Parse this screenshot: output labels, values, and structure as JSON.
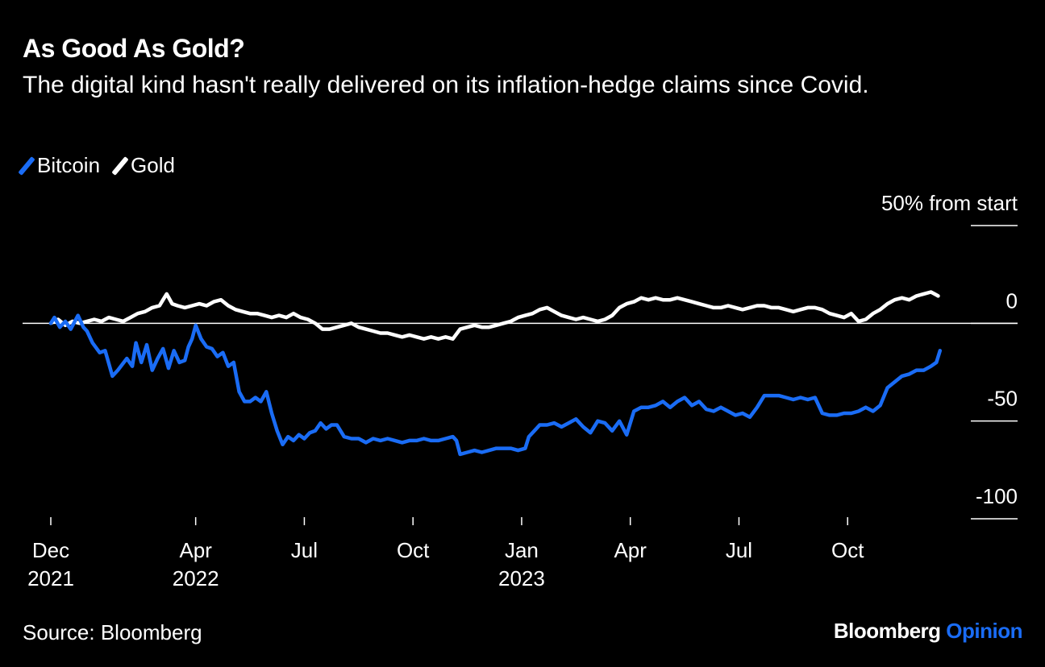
{
  "header": {
    "title": "As Good As Gold?",
    "subtitle": "The digital kind hasn't really delivered on its inflation-hedge claims since Covid."
  },
  "footer": {
    "source": "Source: Bloomberg",
    "brand_main": "Bloomberg",
    "brand_accent": "Opinion"
  },
  "colors": {
    "background": "#000000",
    "bitcoin": "#1a6cf5",
    "gold": "#ffffff",
    "accent": "#1a6cf5"
  },
  "chart_data": {
    "type": "line",
    "title": "As Good As Gold?",
    "ylabel": "% from start",
    "ylim": [
      -100,
      50
    ],
    "xlim": [
      0,
      24.6
    ],
    "y_ticks": [
      {
        "value": 50,
        "label": "50% from start"
      },
      {
        "value": 0,
        "label": "0"
      },
      {
        "value": -50,
        "label": "-50"
      },
      {
        "value": -100,
        "label": "-100"
      }
    ],
    "x_ticks": [
      {
        "value": 0,
        "label": "Dec",
        "sub": "2021"
      },
      {
        "value": 4,
        "label": "Apr",
        "sub": "2022"
      },
      {
        "value": 7,
        "label": "Jul",
        "sub": ""
      },
      {
        "value": 10,
        "label": "Oct",
        "sub": ""
      },
      {
        "value": 13,
        "label": "Jan",
        "sub": "2023"
      },
      {
        "value": 16,
        "label": "Apr",
        "sub": ""
      },
      {
        "value": 19,
        "label": "Jul",
        "sub": ""
      },
      {
        "value": 22,
        "label": "Oct",
        "sub": ""
      }
    ],
    "series": [
      {
        "name": "Bitcoin",
        "color": "#1a6cf5",
        "x": [
          0,
          0.1,
          0.25,
          0.4,
          0.55,
          0.75,
          0.9,
          1.0,
          1.15,
          1.35,
          1.5,
          1.7,
          1.85,
          2.1,
          2.25,
          2.35,
          2.5,
          2.65,
          2.8,
          2.95,
          3.1,
          3.25,
          3.4,
          3.55,
          3.7,
          3.8,
          3.9,
          4.0,
          4.15,
          4.3,
          4.45,
          4.6,
          4.75,
          4.9,
          5.05,
          5.2,
          5.35,
          5.5,
          5.65,
          5.8,
          5.95,
          6.1,
          6.25,
          6.4,
          6.55,
          6.7,
          6.85,
          7.0,
          7.15,
          7.3,
          7.45,
          7.6,
          7.75,
          7.9,
          8.1,
          8.3,
          8.5,
          8.7,
          8.9,
          9.1,
          9.3,
          9.5,
          9.7,
          9.9,
          10.1,
          10.3,
          10.5,
          10.7,
          10.9,
          11.1,
          11.2,
          11.3,
          11.5,
          11.7,
          11.9,
          12.1,
          12.3,
          12.5,
          12.7,
          12.9,
          13.1,
          13.2,
          13.35,
          13.5,
          13.7,
          13.9,
          14.1,
          14.3,
          14.5,
          14.7,
          14.9,
          15.1,
          15.3,
          15.5,
          15.7,
          15.9,
          16.1,
          16.3,
          16.5,
          16.7,
          16.9,
          17.1,
          17.3,
          17.5,
          17.7,
          17.9,
          18.1,
          18.3,
          18.5,
          18.7,
          18.9,
          19.1,
          19.3,
          19.5,
          19.7,
          19.9,
          20.1,
          20.3,
          20.5,
          20.7,
          20.9,
          21.1,
          21.3,
          21.5,
          21.7,
          21.9,
          22.1,
          22.3,
          22.5,
          22.7,
          22.9,
          23.1,
          23.3,
          23.5,
          23.7,
          23.9,
          24.1,
          24.3,
          24.45,
          24.55
        ],
        "values": [
          0,
          3,
          -2,
          1,
          -3,
          4,
          -2,
          -4,
          -10,
          -15,
          -14,
          -27,
          -24,
          -18,
          -22,
          -10,
          -20,
          -11,
          -24,
          -18,
          -13,
          -23,
          -14,
          -20,
          -19,
          -12,
          -8,
          -1,
          -8,
          -12,
          -13,
          -17,
          -15,
          -22,
          -20,
          -35,
          -40,
          -40,
          -38,
          -40,
          -35,
          -46,
          -55,
          -62,
          -58,
          -60,
          -57,
          -59,
          -56,
          -55,
          -51,
          -54,
          -52,
          -52,
          -58,
          -59,
          -59,
          -61,
          -59,
          -60,
          -59,
          -60,
          -61,
          -60,
          -60,
          -59,
          -60,
          -60,
          -59,
          -58,
          -60,
          -67,
          -66,
          -65,
          -66,
          -65,
          -64,
          -64,
          -64,
          -65,
          -64,
          -58,
          -55,
          -52,
          -52,
          -51,
          -53,
          -51,
          -49,
          -53,
          -56,
          -50,
          -51,
          -55,
          -50,
          -57,
          -45,
          -43,
          -43,
          -42,
          -40,
          -43,
          -40,
          -38,
          -42,
          -40,
          -44,
          -45,
          -43,
          -45,
          -47,
          -46,
          -48,
          -43,
          -37,
          -37,
          -37,
          -38,
          -39,
          -38,
          -39,
          -38,
          -46,
          -47,
          -47,
          -46,
          -46,
          -45,
          -43,
          -45,
          -42,
          -33,
          -30,
          -27,
          -26,
          -24,
          -24,
          -22,
          -20,
          -14
        ]
      },
      {
        "name": "Gold",
        "color": "#ffffff",
        "x": [
          0,
          0.2,
          0.4,
          0.6,
          0.8,
          1.0,
          1.2,
          1.4,
          1.6,
          1.8,
          2.0,
          2.2,
          2.4,
          2.6,
          2.8,
          3.0,
          3.1,
          3.2,
          3.35,
          3.5,
          3.7,
          3.9,
          4.1,
          4.3,
          4.5,
          4.7,
          4.9,
          5.1,
          5.3,
          5.5,
          5.7,
          5.9,
          6.1,
          6.3,
          6.5,
          6.7,
          6.9,
          7.1,
          7.3,
          7.5,
          7.7,
          7.9,
          8.1,
          8.3,
          8.5,
          8.7,
          8.9,
          9.1,
          9.3,
          9.5,
          9.7,
          9.9,
          10.1,
          10.3,
          10.5,
          10.7,
          10.9,
          11.1,
          11.3,
          11.5,
          11.7,
          11.9,
          12.1,
          12.3,
          12.5,
          12.7,
          12.9,
          13.1,
          13.3,
          13.5,
          13.7,
          13.9,
          14.1,
          14.3,
          14.5,
          14.7,
          14.9,
          15.1,
          15.3,
          15.5,
          15.7,
          15.9,
          16.1,
          16.3,
          16.5,
          16.7,
          16.9,
          17.1,
          17.3,
          17.5,
          17.7,
          17.9,
          18.1,
          18.3,
          18.5,
          18.7,
          18.9,
          19.1,
          19.3,
          19.5,
          19.7,
          19.9,
          20.1,
          20.3,
          20.5,
          20.7,
          20.9,
          21.1,
          21.3,
          21.5,
          21.7,
          21.9,
          22.1,
          22.3,
          22.5,
          22.7,
          22.9,
          23.1,
          23.3,
          23.5,
          23.7,
          23.9,
          24.1,
          24.3,
          24.4,
          24.5
        ],
        "values": [
          0,
          2,
          -1,
          1,
          0,
          1,
          2,
          1,
          3,
          2,
          1,
          3,
          5,
          6,
          8,
          9,
          12,
          15,
          10,
          9,
          8,
          9,
          10,
          9,
          11,
          12,
          9,
          7,
          6,
          5,
          5,
          4,
          3,
          4,
          3,
          5,
          3,
          2,
          0,
          -3,
          -3,
          -2,
          -1,
          0,
          -2,
          -3,
          -4,
          -5,
          -5,
          -6,
          -7,
          -6,
          -7,
          -8,
          -7,
          -8,
          -7,
          -8,
          -3,
          -2,
          -1,
          -2,
          -2,
          -1,
          0,
          1,
          3,
          4,
          5,
          7,
          8,
          6,
          4,
          3,
          2,
          3,
          2,
          1,
          2,
          4,
          8,
          10,
          11,
          13,
          12,
          13,
          12,
          12,
          13,
          12,
          11,
          10,
          9,
          8,
          8,
          9,
          8,
          7,
          8,
          9,
          9,
          8,
          8,
          7,
          6,
          7,
          8,
          8,
          7,
          5,
          4,
          3,
          5,
          1,
          2,
          5,
          7,
          10,
          12,
          13,
          12,
          14,
          15,
          16,
          15,
          14
        ]
      }
    ]
  }
}
